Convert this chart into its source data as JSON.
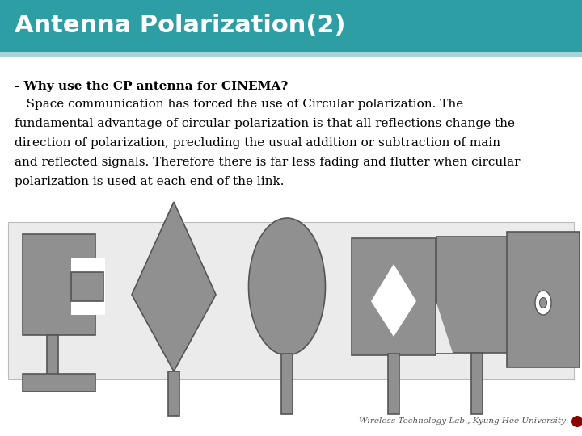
{
  "title": "Antenna Polarization(2)",
  "title_bg_color": "#2E9EA5",
  "title_text_color": "#FFFFFF",
  "body_bg_color": "#FFFFFF",
  "slide_bg_color": "#FFFFFF",
  "heading_text": "- Why use the CP antenna for CINEMA?",
  "body_line1": "   Space communication has forced the use of Circular polarization. The",
  "body_line2": "fundamental advantage of circular polarization is that all reflections change the",
  "body_line3": "direction of polarization, precluding the usual addition or subtraction of main",
  "body_line4": "and reflected signals. Therefore there is far less fading and flutter when circular",
  "body_line5": "polarization is used at each end of the link.",
  "footer_text": "Wireless Technology Lab., Kyung Hee University",
  "antenna_color": "#909090",
  "antenna_edge_color": "#555555",
  "ant_bg_color": "#EBEBEB"
}
